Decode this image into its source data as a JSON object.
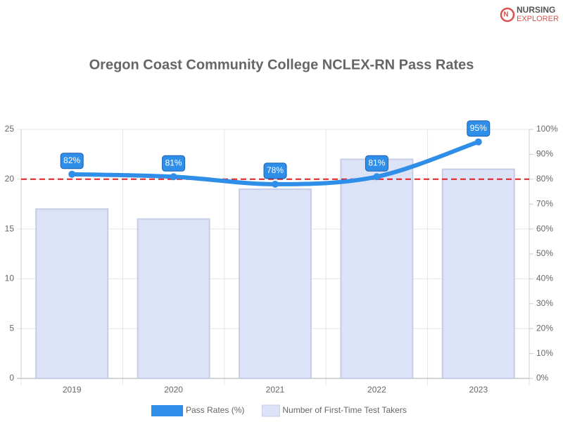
{
  "logo": {
    "line1": "NURSING",
    "line2": "EXPLORER"
  },
  "chart_data": {
    "type": "combo",
    "title": "Oregon Coast Community College NCLEX-RN Pass Rates",
    "categories": [
      "2019",
      "2020",
      "2021",
      "2022",
      "2023"
    ],
    "series": [
      {
        "name": "Pass Rates (%)",
        "type": "line",
        "axis": "y2",
        "color": "#2f8ee8",
        "values": [
          82,
          81,
          78,
          81,
          95
        ],
        "value_labels": [
          "82%",
          "81%",
          "78%",
          "81%",
          "95%"
        ]
      },
      {
        "name": "Number of First-Time Test Takers",
        "type": "bar",
        "color": "#dde3f7",
        "values": [
          17,
          16,
          19,
          22,
          21
        ]
      }
    ],
    "ylim": [
      0,
      25
    ],
    "yticks": [
      0,
      5,
      10,
      15,
      20,
      25
    ],
    "y2lim": [
      0,
      100
    ],
    "y2ticks": [
      {
        "value": 0,
        "label": "0%"
      },
      {
        "value": 10,
        "label": "10%"
      },
      {
        "value": 20,
        "label": "20%"
      },
      {
        "value": 30,
        "label": "30%"
      },
      {
        "value": 40,
        "label": "40%"
      },
      {
        "value": 50,
        "label": "50%"
      },
      {
        "value": 60,
        "label": "60%"
      },
      {
        "value": 70,
        "label": "70%"
      },
      {
        "value": 80,
        "label": "80%"
      },
      {
        "value": 90,
        "label": "90%"
      },
      {
        "value": 100,
        "label": "100%"
      }
    ],
    "reference_line": {
      "value": 80,
      "axis": "y2",
      "color": "#e02020"
    },
    "grid": true,
    "legend": "bottom"
  }
}
